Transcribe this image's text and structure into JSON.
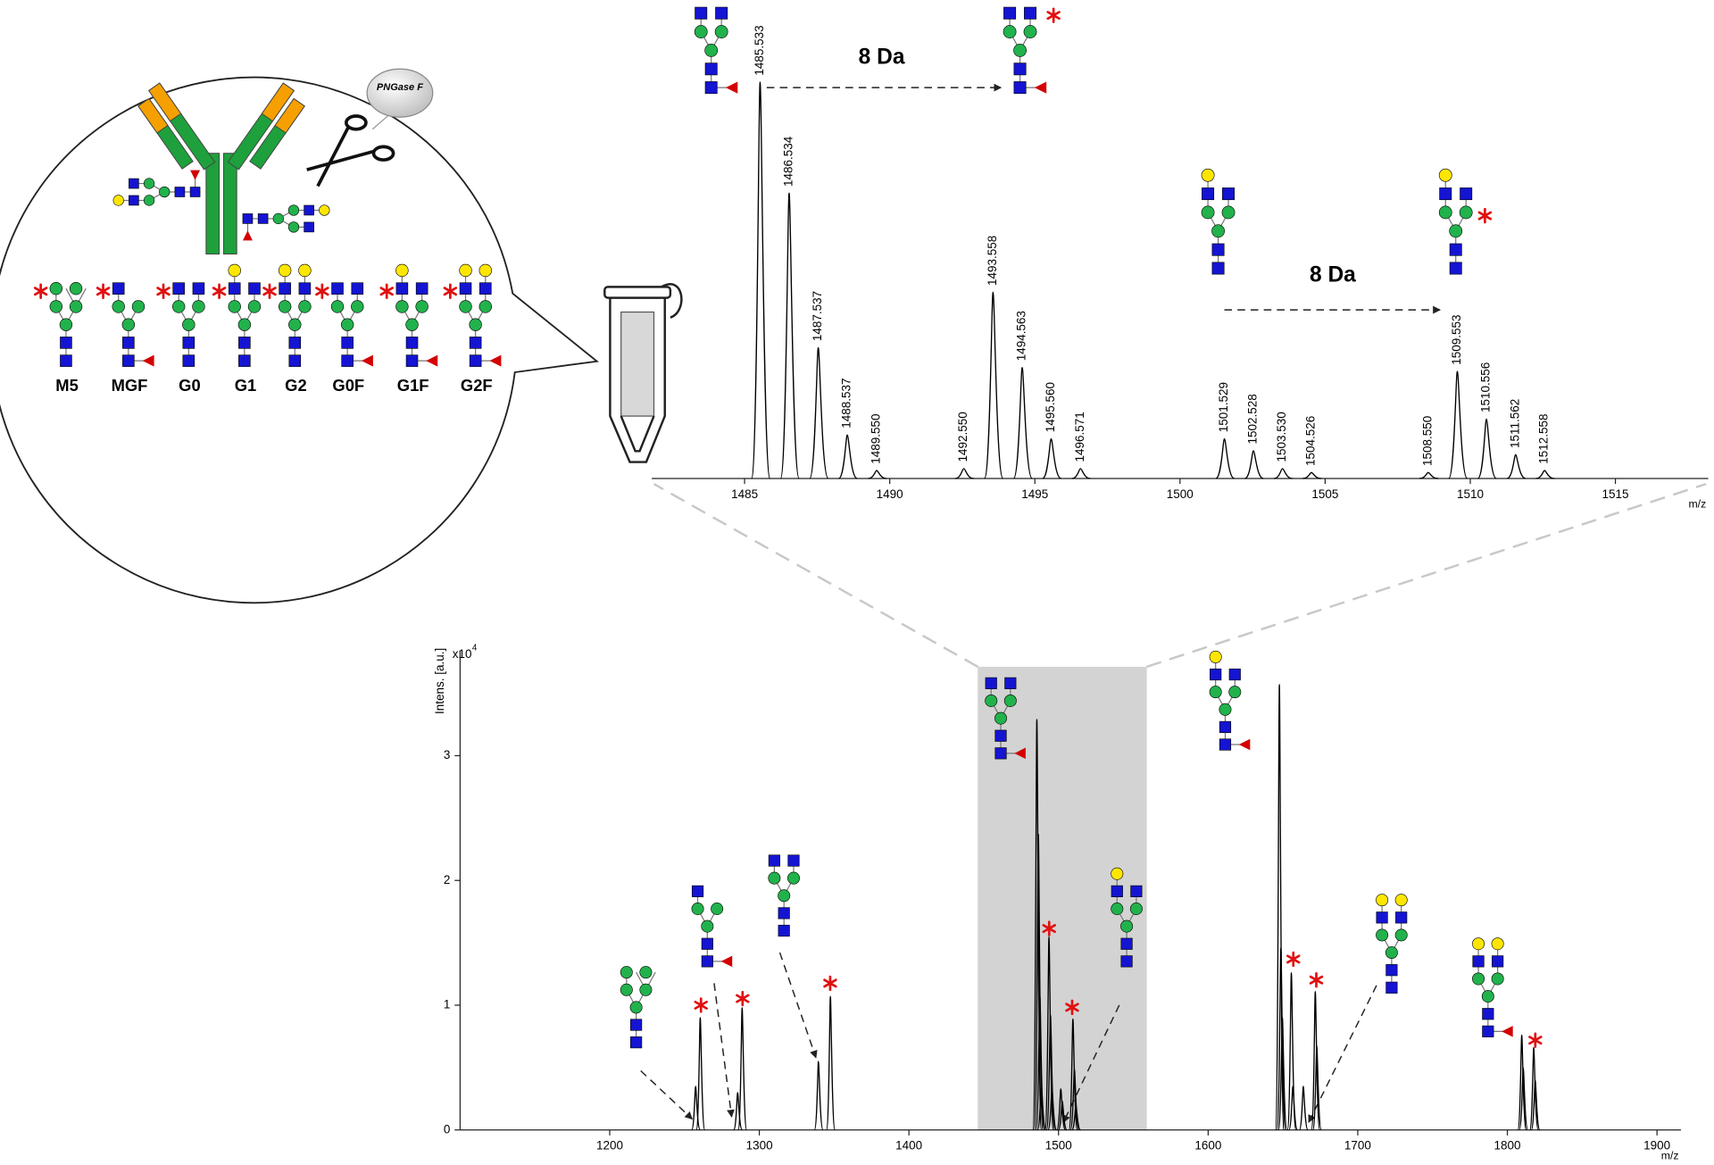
{
  "bubble": {
    "enzyme": "PNGase F",
    "glycans": [
      "M5",
      "MGF",
      "G0",
      "G1",
      "G2",
      "G0F",
      "G1F",
      "G2F"
    ]
  },
  "chart_data": [
    {
      "type": "spectrum",
      "color": "#000000",
      "x": [
        1485.533,
        1486.534,
        1487.537,
        1488.537,
        1489.55,
        1492.55,
        1493.558,
        1494.563,
        1495.56,
        1496.571,
        1501.529,
        1502.528,
        1503.53,
        1504.526,
        1508.55,
        1509.553,
        1510.556,
        1511.562,
        1512.558
      ],
      "x_labels": [
        "1485.533",
        "1486.534",
        "1487.537",
        "1488.537",
        "1489.550",
        "1492.550",
        "1493.558",
        "1494.563",
        "1495.560",
        "1496.571",
        "1501.529",
        "1502.528",
        "1503.530",
        "1504.526",
        "1508.550",
        "1509.553",
        "1510.556",
        "1511.562",
        "1512.558"
      ],
      "values": [
        100,
        72,
        33,
        11,
        2,
        2.5,
        47,
        28,
        10,
        2.5,
        10,
        7,
        2.5,
        1.5,
        1.5,
        27,
        15,
        6,
        2
      ],
      "xlim": [
        1481.8,
        1518.2
      ],
      "xticks": [
        1485,
        1490,
        1495,
        1500,
        1505,
        1510,
        1515
      ],
      "xlabel": "m/z",
      "annotations": [
        "8 Da",
        "8 Da"
      ]
    },
    {
      "type": "spectrum",
      "color": "#000000",
      "x": [
        1257.4,
        1260.5,
        1285.5,
        1288.5,
        1339.5,
        1347.5,
        1485.5,
        1486.5,
        1487.5,
        1488.5,
        1493.6,
        1494.6,
        1495.6,
        1501.5,
        1502.5,
        1509.6,
        1510.6,
        1511.6,
        1647.6,
        1648.6,
        1649.6,
        1655.6,
        1656.6,
        1663.6,
        1671.6,
        1672.6,
        1809.6,
        1810.6,
        1817.6,
        1818.6
      ],
      "values": [
        0.35,
        0.9,
        0.3,
        0.98,
        0.55,
        1.07,
        3.29,
        2.37,
        1.08,
        0.36,
        1.55,
        0.92,
        0.33,
        0.33,
        0.23,
        0.89,
        0.49,
        0.2,
        3.57,
        1.46,
        0.9,
        1.26,
        0.35,
        0.35,
        1.11,
        0.67,
        0.76,
        0.5,
        0.66,
        0.4
      ],
      "xlim": [
        1100,
        1916
      ],
      "ylim": [
        0,
        3.8
      ],
      "xticks": [
        1200,
        1300,
        1400,
        1500,
        1600,
        1700,
        1800,
        1900
      ],
      "yticks": [
        0,
        1,
        2,
        3
      ],
      "xlabel": "m/z",
      "ylabel": "Intens. [a.u.]",
      "y_multiplier": "x10",
      "y_multiplier_exponent": "4",
      "highlight_range": [
        1446,
        1559
      ],
      "highlight_color": "#d3d3d3"
    }
  ]
}
